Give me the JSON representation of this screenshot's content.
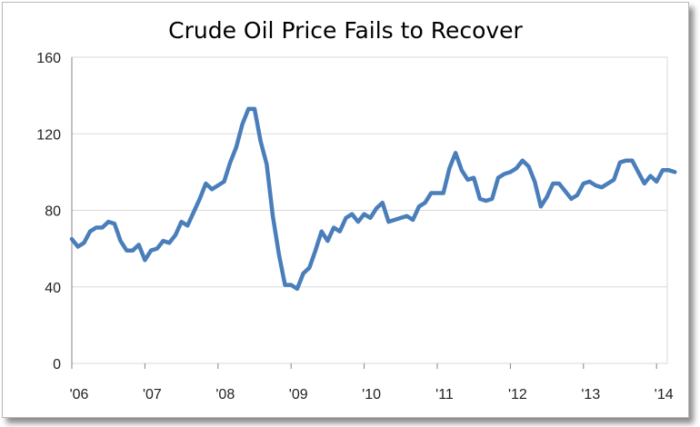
{
  "chart_data": {
    "type": "line",
    "title": "Crude Oil Price Fails to Recover",
    "xlabel": "",
    "ylabel": "",
    "ylim": [
      0,
      160
    ],
    "yticks": [
      "0",
      "40",
      "80",
      "120",
      "160"
    ],
    "xtick_labels": [
      "'06",
      "'07",
      "'08",
      "'09",
      "'10",
      "'11",
      "'12",
      "'13",
      "'14"
    ],
    "grid": true,
    "legend": "none",
    "line_color": "#4a7ebb",
    "series": [
      {
        "x": [
          "2006-01",
          "2006-02",
          "2006-03",
          "2006-04",
          "2006-05",
          "2006-06",
          "2006-07",
          "2006-08",
          "2006-09",
          "2006-10",
          "2006-11",
          "2006-12",
          "2007-01",
          "2007-02",
          "2007-03",
          "2007-04",
          "2007-05",
          "2007-06",
          "2007-07",
          "2007-08",
          "2007-09",
          "2007-10",
          "2007-11",
          "2007-12",
          "2008-01",
          "2008-02",
          "2008-03",
          "2008-04",
          "2008-05",
          "2008-06",
          "2008-07",
          "2008-08",
          "2008-09",
          "2008-10",
          "2008-11",
          "2008-12",
          "2009-01",
          "2009-02",
          "2009-03",
          "2009-04",
          "2009-05",
          "2009-06",
          "2009-07",
          "2009-08",
          "2009-09",
          "2009-10",
          "2009-11",
          "2009-12",
          "2010-01",
          "2010-02",
          "2010-03",
          "2010-04",
          "2010-05",
          "2010-06",
          "2010-07",
          "2010-08",
          "2010-09",
          "2010-10",
          "2010-11",
          "2010-12",
          "2011-01",
          "2011-02",
          "2011-03",
          "2011-04",
          "2011-05",
          "2011-06",
          "2011-07",
          "2011-08",
          "2011-09",
          "2011-10",
          "2011-11",
          "2011-12",
          "2012-01",
          "2012-02",
          "2012-03",
          "2012-04",
          "2012-05",
          "2012-06",
          "2012-07",
          "2012-08",
          "2012-09",
          "2012-10",
          "2012-11",
          "2012-12",
          "2013-01",
          "2013-02",
          "2013-03",
          "2013-04",
          "2013-05",
          "2013-06",
          "2013-07",
          "2013-08",
          "2013-09",
          "2013-10",
          "2013-11",
          "2013-12",
          "2014-01",
          "2014-02",
          "2014-03",
          "2014-04"
        ],
        "values": [
          65,
          61,
          63,
          69,
          71,
          71,
          74,
          73,
          64,
          59,
          59,
          62,
          54,
          59,
          60,
          64,
          63,
          67,
          74,
          72,
          79,
          86,
          94,
          91,
          93,
          95,
          105,
          113,
          125,
          133,
          133,
          116,
          104,
          77,
          57,
          41,
          41,
          39,
          47,
          50,
          59,
          69,
          64,
          71,
          69,
          76,
          78,
          74,
          78,
          76,
          81,
          84,
          74,
          75,
          76,
          77,
          75,
          82,
          84,
          89,
          89,
          89,
          102,
          110,
          101,
          96,
          97,
          86,
          85,
          86,
          97,
          99,
          100,
          102,
          106,
          103,
          95,
          82,
          87,
          94,
          94,
          90,
          86,
          88,
          94,
          95,
          93,
          92,
          94,
          96,
          105,
          106,
          106,
          100,
          94,
          98,
          95,
          101,
          101,
          100
        ]
      }
    ]
  }
}
